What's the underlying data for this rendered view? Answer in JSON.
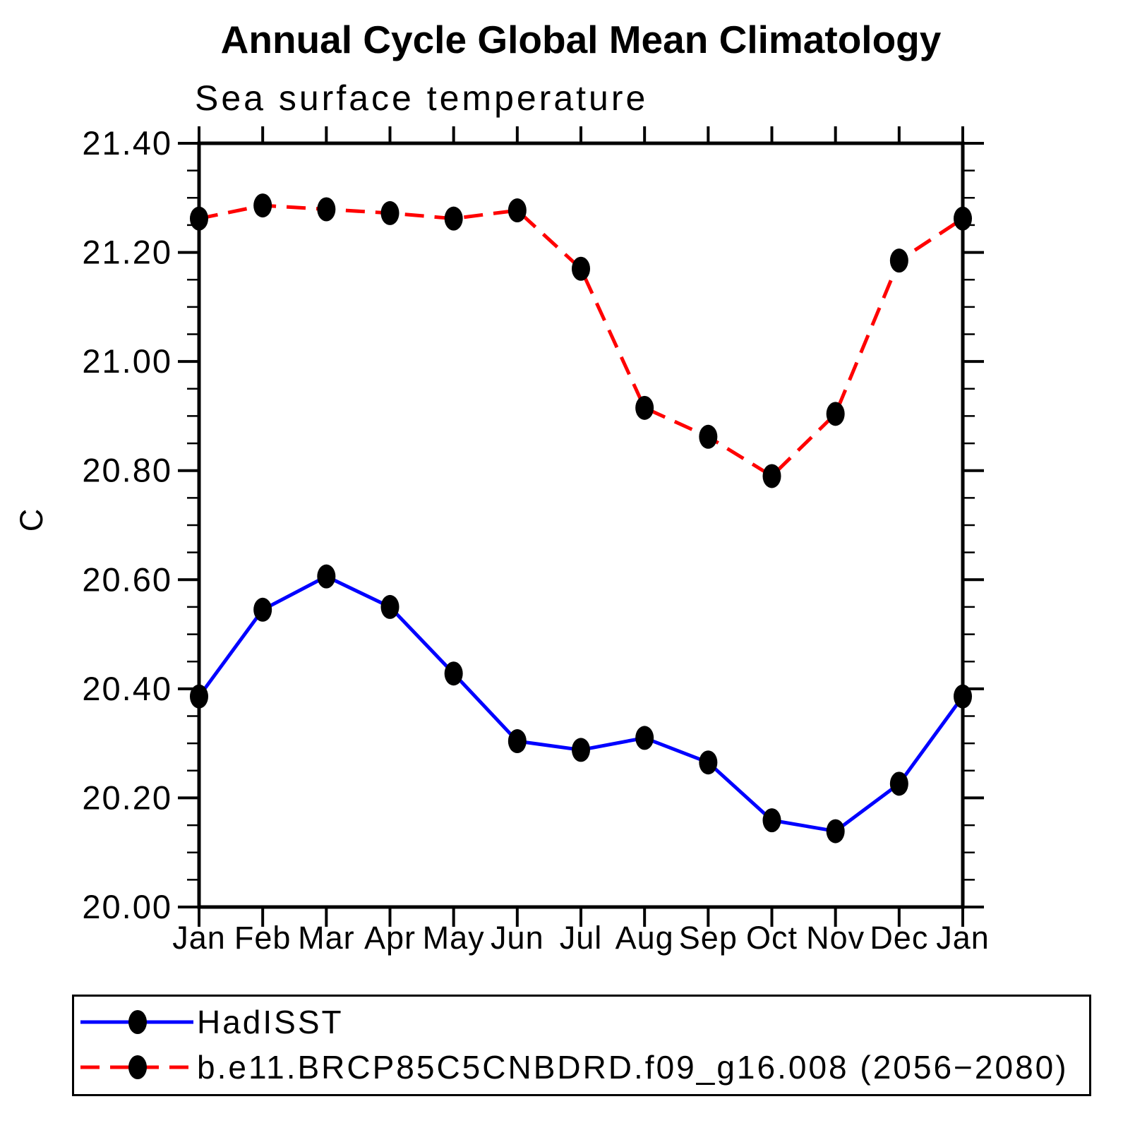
{
  "chart_data": {
    "type": "line",
    "title": "Annual Cycle Global Mean Climatology",
    "subtitle": "Sea surface temperature",
    "ylabel": "C",
    "xlabel": "",
    "categories": [
      "Jan",
      "Feb",
      "Mar",
      "Apr",
      "May",
      "Jun",
      "Jul",
      "Aug",
      "Sep",
      "Oct",
      "Nov",
      "Dec",
      "Jan"
    ],
    "y_ticks": [
      "20.00",
      "20.20",
      "20.40",
      "20.60",
      "20.80",
      "21.00",
      "21.20",
      "21.40"
    ],
    "ylim": [
      20.0,
      21.4
    ],
    "y_major_step": 0.2,
    "y_minor_step": 0.05,
    "grid": "off",
    "legend_position": "bottom-outside",
    "marker": "filled-ellipse",
    "marker_color": "#000000",
    "series": [
      {
        "name": "HadISST",
        "color": "#0000ff",
        "line_style": "solid",
        "values": [
          20.386,
          20.545,
          20.606,
          20.55,
          20.428,
          20.304,
          20.288,
          20.31,
          20.265,
          20.159,
          20.139,
          20.226,
          20.386
        ]
      },
      {
        "name": "b.e11.BRCP85C5CNBDRD.f09_g16.008 (2056−2080)",
        "color": "#ff0000",
        "line_style": "dashed",
        "values": [
          21.262,
          21.286,
          21.279,
          21.272,
          21.262,
          21.277,
          21.17,
          20.915,
          20.862,
          20.79,
          20.904,
          21.185,
          21.262
        ]
      }
    ]
  }
}
